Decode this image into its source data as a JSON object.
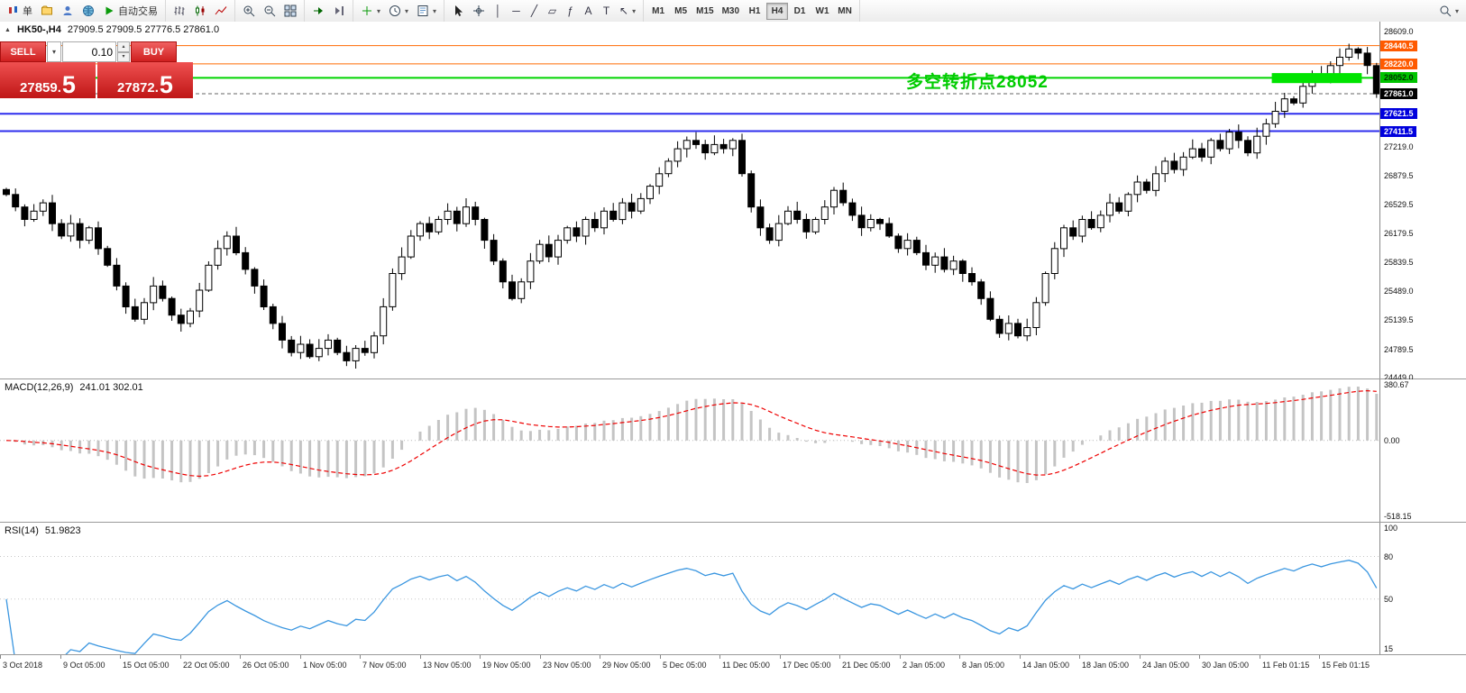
{
  "toolbar": {
    "new_order_label": "单",
    "auto_trading_label": "自动交易",
    "timeframes": [
      "M1",
      "M5",
      "M15",
      "M30",
      "H1",
      "H4",
      "D1",
      "W1",
      "MN"
    ],
    "active_timeframe": "H4",
    "glyphs": {
      "dropdown": "▾",
      "up": "▴",
      "play": "▶",
      "collapse": "▲",
      "vline": "│",
      "hline": "─",
      "trendline": "╱",
      "channel": "▱",
      "fibonacci": "ƒ",
      "text_tool": "A",
      "label_tool": "T",
      "arrows_tool": "↖"
    }
  },
  "chart": {
    "symbol_period": "HK50-,H4",
    "ohlc_text": "27909.5 27909.5 27776.5 27861.0",
    "annotation": {
      "text": "多空转折点28052",
      "color": "#00cc00"
    }
  },
  "trade_panel": {
    "sell_label": "SELL",
    "buy_label": "BUY",
    "volume": "0.10",
    "sell_price": "27859.5",
    "buy_price": "27872.5",
    "sell_base": "27859.",
    "sell_big": "5",
    "buy_base": "27872.",
    "buy_big": "5"
  },
  "chart_data": {
    "type": "candlestick",
    "symbol": "HK50",
    "timeframe": "H4",
    "ylim": [
      24449.0,
      28609.0
    ],
    "yticks": [
      "28609.0",
      "27219.0",
      "26879.5",
      "26529.5",
      "26179.5",
      "25839.5",
      "25489.0",
      "25139.5",
      "24789.5",
      "24449.0"
    ],
    "hlines": [
      {
        "price": "28440.5",
        "color": "#ff6a00",
        "width": 1,
        "style": "solid",
        "label_bg": "#ff5a00"
      },
      {
        "price": "28220.0",
        "color": "#ff6a00",
        "width": 1,
        "style": "solid",
        "label_bg": "#ff5a00"
      },
      {
        "price": "28052.0",
        "color": "#00d400",
        "width": 2,
        "style": "solid",
        "label_bg": "#00c400",
        "label_fg": "#003300"
      },
      {
        "price": "27861.0",
        "color": "#666666",
        "width": 1,
        "style": "dash",
        "label_bg": "#000000"
      },
      {
        "price": "27621.5",
        "color": "#2d2dee",
        "width": 2,
        "style": "solid",
        "label_bg": "#0000dd"
      },
      {
        "price": "27411.5",
        "color": "#2d2dee",
        "width": 2,
        "style": "solid",
        "label_bg": "#0000dd"
      }
    ],
    "highlight_rect": {
      "from_index": 138,
      "to_index": 147,
      "price_top": 28110,
      "price_bottom": 27990,
      "color": "#00e400"
    },
    "closes": [
      26650,
      26500,
      26350,
      26450,
      26550,
      26300,
      26150,
      26300,
      26100,
      26250,
      26000,
      25800,
      25550,
      25300,
      25150,
      25350,
      25550,
      25400,
      25200,
      25100,
      25250,
      25500,
      25800,
      26000,
      26150,
      25950,
      25750,
      25550,
      25300,
      25100,
      24900,
      24750,
      24850,
      24700,
      24800,
      24900,
      24750,
      24650,
      24800,
      24750,
      24950,
      25300,
      25700,
      25900,
      26150,
      26300,
      26200,
      26350,
      26450,
      26300,
      26500,
      26350,
      26100,
      25850,
      25600,
      25400,
      25600,
      25850,
      26050,
      25900,
      26100,
      26250,
      26150,
      26350,
      26250,
      26450,
      26350,
      26550,
      26450,
      26600,
      26750,
      26900,
      27050,
      27200,
      27300,
      27250,
      27150,
      27250,
      27200,
      27300,
      26900,
      26500,
      26250,
      26100,
      26300,
      26450,
      26350,
      26200,
      26350,
      26500,
      26700,
      26550,
      26400,
      26250,
      26350,
      26300,
      26150,
      26000,
      26100,
      25950,
      25800,
      25900,
      25750,
      25850,
      25700,
      25600,
      25400,
      25150,
      24980,
      25100,
      24950,
      25050,
      25350,
      25700,
      26000,
      26250,
      26150,
      26350,
      26250,
      26400,
      26550,
      26450,
      26650,
      26800,
      26700,
      26900,
      27050,
      26950,
      27100,
      27200,
      27100,
      27300,
      27200,
      27400,
      27300,
      27150,
      27350,
      27500,
      27650,
      27800,
      27750,
      27950,
      28100,
      28050,
      28200,
      28300,
      28400,
      28350,
      28200,
      27861
    ]
  },
  "macd": {
    "label": "MACD(12,26,9)",
    "values": "241.01 302.01",
    "ticks": [
      "380.67",
      "0.00",
      "-518.15"
    ],
    "range": [
      -518.15,
      380.67
    ],
    "histogram_color": "#c4c4c4",
    "signal_color": "#ee0000"
  },
  "rsi": {
    "label": "RSI(14)",
    "value": "51.9823",
    "ticks": [
      "100",
      "80",
      "50",
      "15"
    ],
    "levels": [
      80,
      50
    ],
    "line_color": "#3a96e0"
  },
  "time_axis": {
    "labels": [
      "3 Oct 2018",
      "9 Oct 05:00",
      "15 Oct 05:00",
      "22 Oct 05:00",
      "26 Oct 05:00",
      "1 Nov 05:00",
      "7 Nov 05:00",
      "13 Nov 05:00",
      "19 Nov 05:00",
      "23 Nov 05:00",
      "29 Nov 05:00",
      "5 Dec 05:00",
      "11 Dec 05:00",
      "17 Dec 05:00",
      "21 Dec 05:00",
      "2 Jan 05:00",
      "8 Jan 05:00",
      "14 Jan 05:00",
      "18 Jan 05:00",
      "24 Jan 05:00",
      "30 Jan 05:00",
      "11 Feb 01:15",
      "15 Feb 01:15"
    ]
  }
}
